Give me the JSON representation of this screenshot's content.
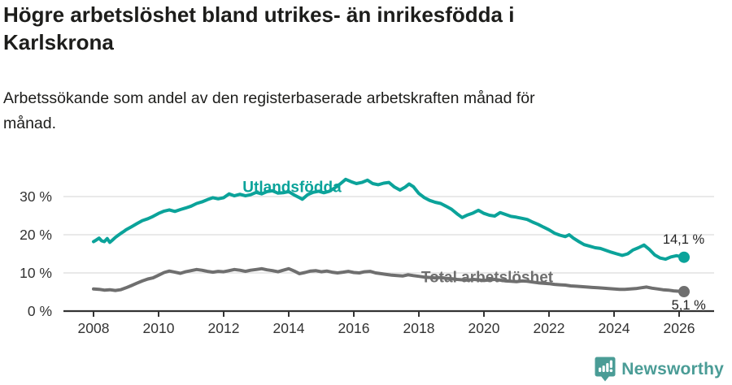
{
  "title_lines": [
    "Högre arbetslöshet bland utrikes- än inrikesfödda i",
    "Karlskrona"
  ],
  "subtitle_lines": [
    "Arbetssökande som andel av den registerbaserade arbetskraften månad för",
    "månad."
  ],
  "footer": {
    "brand": "Newsworthy",
    "logo_icon": "bar-chart-pin-icon"
  },
  "colors": {
    "accent_teal": "#0ba39a",
    "series_gray": "#6f6f6f",
    "grid": "#dcdcdc",
    "axis": "#333333",
    "text_dark": "#1d1d1b",
    "label_text": "#222222",
    "logo_teal": "#4a9c96"
  },
  "chart_data": {
    "type": "line",
    "title": "Högre arbetslöshet bland utrikes- än inrikesfödda i Karlskrona",
    "subtitle": "Arbetssökande som andel av den registerbaserade arbetskraften månad för månad.",
    "grid": true,
    "legend_position": "inline-labels",
    "x_axis": {
      "ticks": [
        2008,
        2010,
        2012,
        2014,
        2016,
        2018,
        2020,
        2022,
        2024,
        2026
      ],
      "range": [
        2007.1,
        2027.1
      ]
    },
    "y_axis": {
      "ticks": [
        0,
        10,
        20,
        30
      ],
      "labels": [
        "0 %",
        "10 %",
        "20 %",
        "30 %"
      ],
      "range": [
        0,
        38
      ]
    },
    "series": [
      {
        "name": "Utlandsfödda",
        "color": "#0ba39a",
        "end_label": "14,1 %",
        "end_value": 14.1,
        "label_pos": {
          "year": 2014.1,
          "value": 32.4,
          "anchor": "middle"
        },
        "end_label_pos": {
          "year": 2026.78,
          "value": 18.9,
          "anchor": "end"
        },
        "points": [
          [
            2008.0,
            18.2
          ],
          [
            2008.08,
            18.6
          ],
          [
            2008.17,
            19.1
          ],
          [
            2008.25,
            18.4
          ],
          [
            2008.33,
            18.2
          ],
          [
            2008.42,
            19.0
          ],
          [
            2008.5,
            18.0
          ],
          [
            2008.58,
            18.6
          ],
          [
            2008.67,
            19.3
          ],
          [
            2008.75,
            19.8
          ],
          [
            2008.83,
            20.3
          ],
          [
            2008.92,
            20.8
          ],
          [
            2009.0,
            21.3
          ],
          [
            2009.17,
            22.1
          ],
          [
            2009.33,
            22.9
          ],
          [
            2009.5,
            23.7
          ],
          [
            2009.67,
            24.2
          ],
          [
            2009.83,
            24.8
          ],
          [
            2010.0,
            25.6
          ],
          [
            2010.17,
            26.2
          ],
          [
            2010.33,
            26.5
          ],
          [
            2010.5,
            26.1
          ],
          [
            2010.67,
            26.6
          ],
          [
            2010.83,
            27.0
          ],
          [
            2011.0,
            27.5
          ],
          [
            2011.17,
            28.2
          ],
          [
            2011.33,
            28.6
          ],
          [
            2011.5,
            29.2
          ],
          [
            2011.67,
            29.7
          ],
          [
            2011.83,
            29.4
          ],
          [
            2012.0,
            29.7
          ],
          [
            2012.17,
            30.7
          ],
          [
            2012.33,
            30.2
          ],
          [
            2012.5,
            30.6
          ],
          [
            2012.67,
            30.2
          ],
          [
            2012.83,
            30.5
          ],
          [
            2013.0,
            31.1
          ],
          [
            2013.17,
            30.7
          ],
          [
            2013.33,
            31.3
          ],
          [
            2013.5,
            31.5
          ],
          [
            2013.67,
            30.9
          ],
          [
            2013.83,
            31.0
          ],
          [
            2014.0,
            31.3
          ],
          [
            2014.17,
            30.4
          ],
          [
            2014.33,
            29.7
          ],
          [
            2014.42,
            29.3
          ],
          [
            2014.58,
            30.5
          ],
          [
            2014.75,
            31.1
          ],
          [
            2014.92,
            31.4
          ],
          [
            2015.08,
            31.0
          ],
          [
            2015.25,
            31.4
          ],
          [
            2015.42,
            32.3
          ],
          [
            2015.58,
            33.3
          ],
          [
            2015.75,
            34.5
          ],
          [
            2015.92,
            33.9
          ],
          [
            2016.08,
            33.4
          ],
          [
            2016.25,
            33.7
          ],
          [
            2016.42,
            34.3
          ],
          [
            2016.58,
            33.4
          ],
          [
            2016.75,
            33.1
          ],
          [
            2016.92,
            33.5
          ],
          [
            2017.08,
            33.7
          ],
          [
            2017.25,
            32.5
          ],
          [
            2017.42,
            31.7
          ],
          [
            2017.58,
            32.5
          ],
          [
            2017.7,
            33.3
          ],
          [
            2017.83,
            32.6
          ],
          [
            2018.0,
            30.8
          ],
          [
            2018.17,
            29.7
          ],
          [
            2018.33,
            29.0
          ],
          [
            2018.5,
            28.5
          ],
          [
            2018.67,
            28.2
          ],
          [
            2018.83,
            27.5
          ],
          [
            2019.0,
            26.7
          ],
          [
            2019.17,
            25.5
          ],
          [
            2019.33,
            24.5
          ],
          [
            2019.5,
            25.2
          ],
          [
            2019.67,
            25.7
          ],
          [
            2019.83,
            26.4
          ],
          [
            2020.0,
            25.6
          ],
          [
            2020.17,
            25.1
          ],
          [
            2020.33,
            24.9
          ],
          [
            2020.5,
            25.8
          ],
          [
            2020.67,
            25.3
          ],
          [
            2020.83,
            24.8
          ],
          [
            2021.0,
            24.6
          ],
          [
            2021.17,
            24.3
          ],
          [
            2021.33,
            24.0
          ],
          [
            2021.5,
            23.3
          ],
          [
            2021.67,
            22.7
          ],
          [
            2021.83,
            22.0
          ],
          [
            2022.0,
            21.3
          ],
          [
            2022.17,
            20.4
          ],
          [
            2022.33,
            19.9
          ],
          [
            2022.5,
            19.5
          ],
          [
            2022.62,
            20.0
          ],
          [
            2022.75,
            19.1
          ],
          [
            2022.92,
            18.2
          ],
          [
            2023.08,
            17.4
          ],
          [
            2023.25,
            17.0
          ],
          [
            2023.42,
            16.6
          ],
          [
            2023.58,
            16.4
          ],
          [
            2023.75,
            15.9
          ],
          [
            2023.92,
            15.4
          ],
          [
            2024.08,
            15.0
          ],
          [
            2024.25,
            14.6
          ],
          [
            2024.42,
            15.0
          ],
          [
            2024.58,
            16.0
          ],
          [
            2024.75,
            16.6
          ],
          [
            2024.92,
            17.3
          ],
          [
            2025.08,
            16.2
          ],
          [
            2025.25,
            14.7
          ],
          [
            2025.42,
            13.9
          ],
          [
            2025.58,
            13.6
          ],
          [
            2025.75,
            14.2
          ],
          [
            2025.92,
            14.5
          ],
          [
            2026.15,
            14.1
          ]
        ]
      },
      {
        "name": "Total arbetslöshet",
        "color": "#6f6f6f",
        "end_label": "5,1 %",
        "end_value": 5.1,
        "label_pos": {
          "year": 2020.1,
          "value": 8.8,
          "anchor": "middle"
        },
        "end_label_pos": {
          "year": 2026.82,
          "value": 1.7,
          "anchor": "end"
        },
        "points": [
          [
            2008.0,
            5.8
          ],
          [
            2008.17,
            5.7
          ],
          [
            2008.33,
            5.5
          ],
          [
            2008.5,
            5.6
          ],
          [
            2008.67,
            5.4
          ],
          [
            2008.83,
            5.6
          ],
          [
            2009.0,
            6.1
          ],
          [
            2009.17,
            6.7
          ],
          [
            2009.33,
            7.3
          ],
          [
            2009.5,
            7.9
          ],
          [
            2009.67,
            8.4
          ],
          [
            2009.83,
            8.7
          ],
          [
            2010.0,
            9.4
          ],
          [
            2010.17,
            10.1
          ],
          [
            2010.33,
            10.5
          ],
          [
            2010.5,
            10.2
          ],
          [
            2010.67,
            9.9
          ],
          [
            2010.83,
            10.3
          ],
          [
            2011.0,
            10.6
          ],
          [
            2011.17,
            10.9
          ],
          [
            2011.33,
            10.7
          ],
          [
            2011.5,
            10.4
          ],
          [
            2011.67,
            10.2
          ],
          [
            2011.83,
            10.4
          ],
          [
            2012.0,
            10.3
          ],
          [
            2012.17,
            10.6
          ],
          [
            2012.33,
            10.9
          ],
          [
            2012.5,
            10.7
          ],
          [
            2012.67,
            10.4
          ],
          [
            2012.83,
            10.7
          ],
          [
            2013.0,
            10.9
          ],
          [
            2013.17,
            11.1
          ],
          [
            2013.33,
            10.8
          ],
          [
            2013.5,
            10.6
          ],
          [
            2013.67,
            10.3
          ],
          [
            2013.83,
            10.7
          ],
          [
            2014.0,
            11.1
          ],
          [
            2014.17,
            10.5
          ],
          [
            2014.33,
            9.8
          ],
          [
            2014.5,
            10.1
          ],
          [
            2014.67,
            10.5
          ],
          [
            2014.83,
            10.6
          ],
          [
            2015.0,
            10.3
          ],
          [
            2015.17,
            10.5
          ],
          [
            2015.33,
            10.2
          ],
          [
            2015.5,
            10.0
          ],
          [
            2015.67,
            10.2
          ],
          [
            2015.83,
            10.4
          ],
          [
            2016.0,
            10.1
          ],
          [
            2016.17,
            10.0
          ],
          [
            2016.33,
            10.3
          ],
          [
            2016.5,
            10.4
          ],
          [
            2016.67,
            10.0
          ],
          [
            2016.83,
            9.8
          ],
          [
            2017.0,
            9.6
          ],
          [
            2017.17,
            9.4
          ],
          [
            2017.33,
            9.3
          ],
          [
            2017.5,
            9.2
          ],
          [
            2017.67,
            9.5
          ],
          [
            2017.83,
            9.3
          ],
          [
            2018.0,
            9.1
          ],
          [
            2018.17,
            8.9
          ],
          [
            2018.33,
            8.8
          ],
          [
            2018.5,
            8.7
          ],
          [
            2018.67,
            8.8
          ],
          [
            2018.83,
            8.6
          ],
          [
            2019.0,
            8.5
          ],
          [
            2019.17,
            8.3
          ],
          [
            2019.33,
            8.2
          ],
          [
            2019.5,
            8.1
          ],
          [
            2019.67,
            8.3
          ],
          [
            2019.83,
            8.2
          ],
          [
            2020.0,
            8.0
          ],
          [
            2020.17,
            8.2
          ],
          [
            2020.33,
            8.3
          ],
          [
            2020.5,
            8.1
          ],
          [
            2020.67,
            7.9
          ],
          [
            2020.83,
            7.8
          ],
          [
            2021.0,
            7.7
          ],
          [
            2021.17,
            7.9
          ],
          [
            2021.33,
            7.8
          ],
          [
            2021.5,
            7.6
          ],
          [
            2021.67,
            7.4
          ],
          [
            2021.83,
            7.3
          ],
          [
            2022.0,
            7.2
          ],
          [
            2022.17,
            7.0
          ],
          [
            2022.33,
            6.9
          ],
          [
            2022.5,
            6.8
          ],
          [
            2022.67,
            6.6
          ],
          [
            2022.83,
            6.5
          ],
          [
            2023.0,
            6.4
          ],
          [
            2023.17,
            6.3
          ],
          [
            2023.33,
            6.2
          ],
          [
            2023.5,
            6.1
          ],
          [
            2023.67,
            6.0
          ],
          [
            2023.83,
            5.9
          ],
          [
            2024.0,
            5.8
          ],
          [
            2024.17,
            5.7
          ],
          [
            2024.33,
            5.7
          ],
          [
            2024.5,
            5.8
          ],
          [
            2024.67,
            5.9
          ],
          [
            2024.83,
            6.1
          ],
          [
            2025.0,
            6.3
          ],
          [
            2025.17,
            6.0
          ],
          [
            2025.33,
            5.8
          ],
          [
            2025.5,
            5.6
          ],
          [
            2025.67,
            5.5
          ],
          [
            2025.83,
            5.3
          ],
          [
            2026.15,
            5.1
          ]
        ]
      }
    ]
  }
}
